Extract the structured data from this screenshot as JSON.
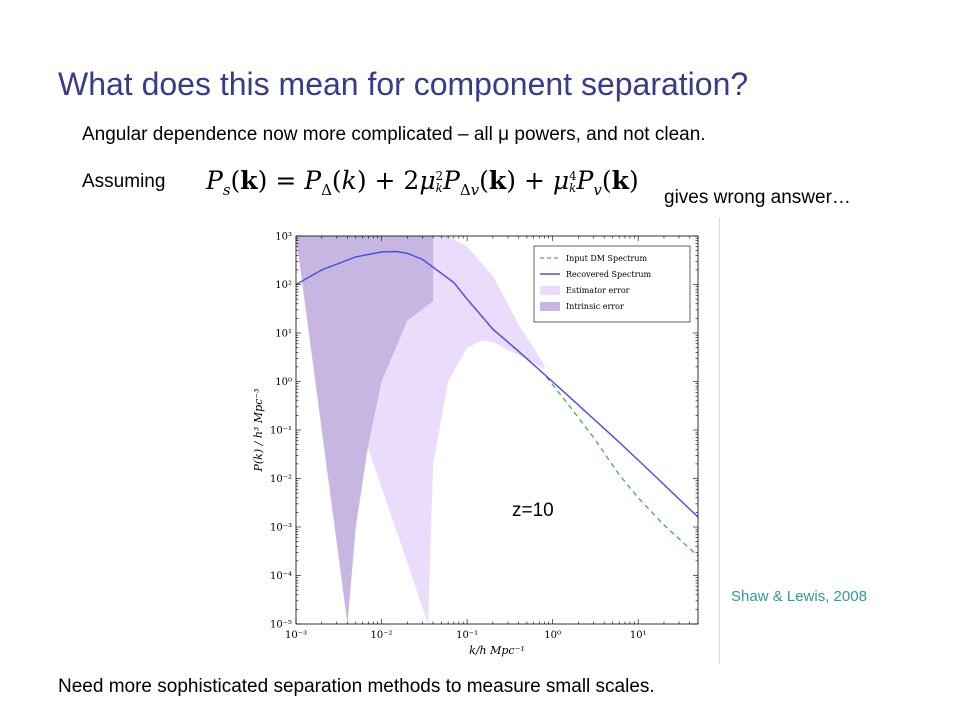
{
  "slide": {
    "title": "What does this mean for component separation?",
    "line1": "Angular dependence now more complicated – all μ powers, and not clean.",
    "assuming": "Assuming",
    "gives": "gives wrong answer…",
    "z_label": "z=10",
    "citation": "Shaw & Lewis, 2008",
    "footer": "Need more sophisticated separation methods to measure small scales."
  },
  "colors": {
    "title": "#3a3a8c",
    "citation": "#2e9a9a",
    "estimator_fill": "#ebdcfc",
    "intrinsic_fill": "#c8b6e2",
    "recovered_line": "#4a4ee0",
    "input_line": "#4caa4c"
  },
  "chart_data": {
    "type": "line",
    "xscale": "log",
    "yscale": "log",
    "xlim": [
      0.001,
      50
    ],
    "ylim": [
      1e-05,
      1000
    ],
    "xlabel": "k/h Mpc⁻¹",
    "ylabel": "P(k) / h³ Mpc⁻³",
    "x_ticks": [
      {
        "value": 0.001,
        "label": "10⁻³"
      },
      {
        "value": 0.01,
        "label": "10⁻²"
      },
      {
        "value": 0.1,
        "label": "10⁻¹"
      },
      {
        "value": 1,
        "label": "10⁰"
      },
      {
        "value": 10,
        "label": "10¹"
      }
    ],
    "y_ticks": [
      {
        "value": 1e-05,
        "label": "10⁻⁵"
      },
      {
        "value": 0.0001,
        "label": "10⁻⁴"
      },
      {
        "value": 0.001,
        "label": "10⁻³"
      },
      {
        "value": 0.01,
        "label": "10⁻²"
      },
      {
        "value": 0.1,
        "label": "10⁻¹"
      },
      {
        "value": 1,
        "label": "10⁰"
      },
      {
        "value": 10,
        "label": "10¹"
      },
      {
        "value": 100,
        "label": "10²"
      },
      {
        "value": 1000,
        "label": "10³"
      }
    ],
    "legend_position": "top-right",
    "series": [
      {
        "name": "Input DM Spectrum",
        "style": "dashed",
        "points": [
          [
            0.001,
            100
          ],
          [
            0.002,
            200
          ],
          [
            0.005,
            370
          ],
          [
            0.01,
            470
          ],
          [
            0.015,
            480
          ],
          [
            0.02,
            440
          ],
          [
            0.03,
            330
          ],
          [
            0.05,
            170
          ],
          [
            0.07,
            110
          ],
          [
            0.1,
            50
          ],
          [
            0.2,
            12
          ],
          [
            0.4,
            4.2
          ],
          [
            0.8,
            1.4
          ],
          [
            1.5,
            0.35
          ],
          [
            3,
            0.07
          ],
          [
            6,
            0.012
          ],
          [
            10,
            0.004
          ],
          [
            20,
            0.0011
          ],
          [
            50,
            0.00025
          ]
        ]
      },
      {
        "name": "Recovered Spectrum",
        "style": "solid",
        "points": [
          [
            0.001,
            100
          ],
          [
            0.002,
            200
          ],
          [
            0.005,
            370
          ],
          [
            0.01,
            470
          ],
          [
            0.015,
            480
          ],
          [
            0.02,
            440
          ],
          [
            0.03,
            330
          ],
          [
            0.05,
            170
          ],
          [
            0.07,
            110
          ],
          [
            0.1,
            50
          ],
          [
            0.2,
            12
          ],
          [
            0.4,
            4.2
          ],
          [
            0.8,
            1.4
          ],
          [
            1.5,
            0.52
          ],
          [
            3,
            0.17
          ],
          [
            6,
            0.056
          ],
          [
            10,
            0.024
          ],
          [
            20,
            0.0075
          ],
          [
            50,
            0.0016
          ]
        ]
      }
    ],
    "bands": [
      {
        "name": "Estimator error",
        "upper": [
          [
            0.001,
            1000
          ],
          [
            0.005,
            1000
          ],
          [
            0.02,
            1000
          ],
          [
            0.06,
            1000
          ],
          [
            0.1,
            600
          ],
          [
            0.2,
            150
          ],
          [
            0.4,
            15
          ],
          [
            0.8,
            2.2
          ]
        ],
        "lower": [
          [
            0.035,
            1e-05
          ],
          [
            0.04,
            0.02
          ],
          [
            0.06,
            1
          ],
          [
            0.1,
            5
          ],
          [
            0.15,
            7
          ],
          [
            0.2,
            6.5
          ],
          [
            0.4,
            3.5
          ],
          [
            0.8,
            1.8
          ]
        ]
      },
      {
        "name": "Intrinsic error",
        "upper": [
          [
            0.001,
            1000
          ],
          [
            0.002,
            1000
          ],
          [
            0.005,
            1000
          ],
          [
            0.01,
            1000
          ],
          [
            0.02,
            1000
          ],
          [
            0.04,
            1000
          ]
        ],
        "lower": [
          [
            0.004,
            1e-05
          ],
          [
            0.005,
            0.001
          ],
          [
            0.007,
            0.05
          ],
          [
            0.01,
            1
          ],
          [
            0.02,
            18
          ],
          [
            0.04,
            45
          ]
        ]
      }
    ]
  }
}
